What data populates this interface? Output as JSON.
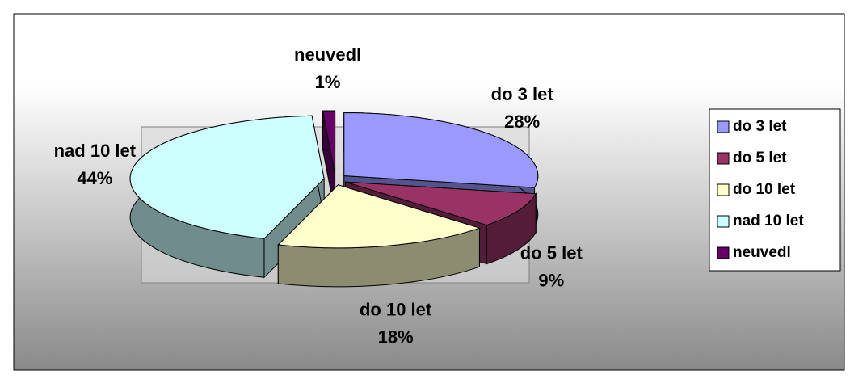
{
  "chart_data": {
    "type": "pie",
    "categories": [
      "do 3 let",
      "do 5 let",
      "do 10 let",
      "nad 10 let",
      "neuvedl"
    ],
    "values": [
      28,
      9,
      18,
      44,
      1
    ],
    "value_labels": [
      "28%",
      "9%",
      "18%",
      "44%",
      "1%"
    ],
    "colors": [
      "#9999ff",
      "#993366",
      "#ffffcc",
      "#ccffff",
      "#660066"
    ],
    "legend": "right"
  }
}
